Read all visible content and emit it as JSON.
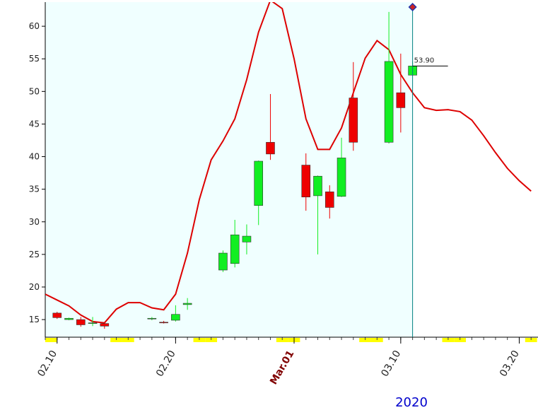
{
  "chart_data": {
    "type": "candlestick",
    "x": [
      "2020-02-10",
      "2020-02-11",
      "2020-02-12",
      "2020-02-13",
      "2020-02-14",
      "2020-02-18",
      "2020-02-19",
      "2020-02-20",
      "2020-02-21",
      "2020-02-24",
      "2020-02-25",
      "2020-02-26",
      "2020-02-27",
      "2020-02-28",
      "2020-03-02",
      "2020-03-03",
      "2020-03-04",
      "2020-03-05",
      "2020-03-06",
      "2020-03-09",
      "2020-03-10",
      "2020-03-11"
    ],
    "open": [
      16.0,
      15.0,
      15.0,
      14.4,
      14.4,
      15.1,
      14.6,
      14.9,
      17.3,
      22.6,
      23.6,
      26.9,
      32.5,
      42.2,
      38.7,
      34.0,
      34.6,
      33.9,
      49.0,
      42.2,
      49.8,
      52.5
    ],
    "high": [
      16.2,
      15.3,
      15.4,
      15.4,
      14.6,
      15.4,
      14.8,
      17.2,
      18.3,
      25.6,
      30.3,
      29.6,
      39.4,
      49.6,
      40.5,
      37.1,
      35.6,
      42.9,
      54.5,
      62.2,
      55.8,
      54.6
    ],
    "low": [
      15.1,
      14.9,
      13.9,
      14.0,
      13.6,
      14.9,
      14.4,
      14.7,
      16.5,
      22.3,
      23.0,
      25.0,
      29.5,
      39.5,
      31.7,
      25.0,
      30.5,
      33.8,
      40.9,
      42.0,
      43.7,
      52.4
    ],
    "close": [
      15.3,
      15.2,
      14.2,
      14.5,
      14.0,
      15.2,
      14.5,
      15.8,
      17.5,
      25.2,
      28.0,
      27.8,
      39.3,
      40.4,
      33.8,
      37.0,
      32.2,
      39.8,
      42.2,
      54.6,
      47.5,
      53.9
    ],
    "up_color": "#11ee22",
    "down_color": "#ee0000",
    "line": {
      "color": "#dd0000",
      "x": [
        "2020-02-09",
        "2020-02-10",
        "2020-02-11",
        "2020-02-12",
        "2020-02-13",
        "2020-02-14",
        "2020-02-15",
        "2020-02-16",
        "2020-02-17",
        "2020-02-18",
        "2020-02-19",
        "2020-02-20",
        "2020-02-21",
        "2020-02-22",
        "2020-02-23",
        "2020-02-24",
        "2020-02-25",
        "2020-02-26",
        "2020-02-27",
        "2020-02-28",
        "2020-02-29",
        "2020-03-01",
        "2020-03-02",
        "2020-03-03",
        "2020-03-04",
        "2020-03-05",
        "2020-03-06",
        "2020-03-07",
        "2020-03-08",
        "2020-03-09",
        "2020-03-10",
        "2020-03-11",
        "2020-03-12",
        "2020-03-13",
        "2020-03-14",
        "2020-03-15",
        "2020-03-16",
        "2020-03-17",
        "2020-03-18",
        "2020-03-19",
        "2020-03-20",
        "2020-03-21"
      ],
      "values": [
        18.9,
        18.0,
        17.1,
        15.7,
        14.7,
        14.5,
        16.6,
        17.6,
        17.6,
        16.8,
        16.5,
        18.9,
        25.2,
        33.4,
        39.5,
        42.4,
        45.8,
        51.8,
        59.1,
        64.0,
        62.7,
        55.0,
        45.8,
        41.1,
        41.1,
        44.4,
        49.8,
        55.1,
        57.8,
        56.4,
        52.6,
        49.8,
        47.5,
        47.1,
        47.2,
        46.9,
        45.6,
        43.2,
        40.6,
        38.2,
        36.3,
        34.7
      ]
    },
    "xlim": [
      "2020-02-09T00:00:00Z",
      "2020-03-21T14:00:00Z"
    ],
    "ylim": [
      12.3,
      63.7
    ],
    "yticks": [
      15,
      20,
      25,
      30,
      35,
      40,
      45,
      50,
      55,
      60
    ],
    "xticks": [
      {
        "value": "2020-02-10",
        "label": "02.10"
      },
      {
        "value": "2020-02-20",
        "label": "02.20"
      },
      {
        "value": "2020-03-01",
        "label": "Mar.01",
        "color": "#800000"
      },
      {
        "value": "2020-03-10",
        "label": "03.10"
      },
      {
        "value": "2020-03-20",
        "label": "03.20"
      }
    ],
    "year_label": "2020",
    "cursor_x": "2020-03-11",
    "last_price": {
      "value": 53.9,
      "label": "53.90"
    },
    "grid": false
  }
}
